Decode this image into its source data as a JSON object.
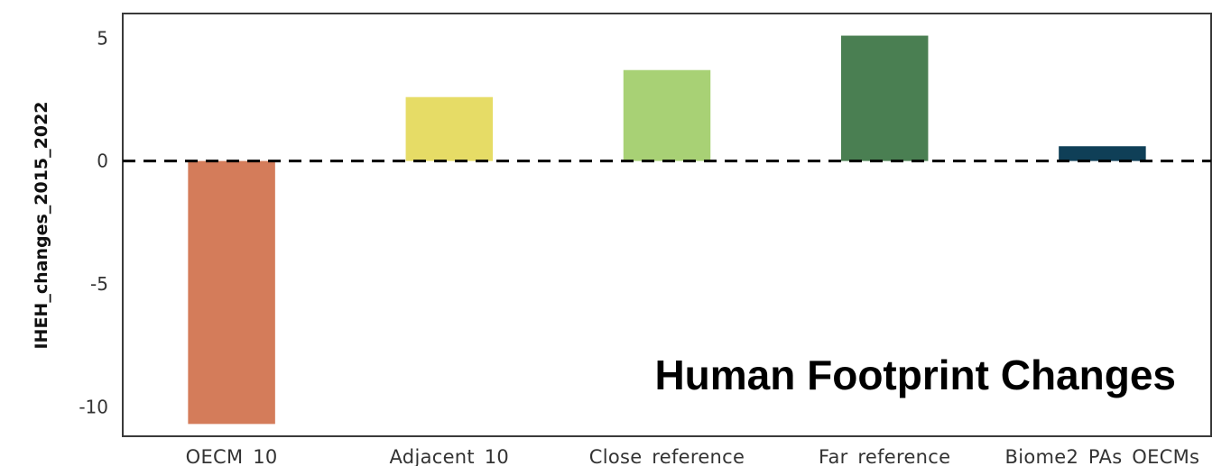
{
  "chart_data": {
    "type": "bar",
    "title": "Human Footprint Changes",
    "xlabel": "",
    "ylabel": "IHEH_changes_2015_2022",
    "categories": [
      "OECM_10",
      "Adjacent_10",
      "Close_reference",
      "Far_reference",
      "Biome2_PAs_OECMs"
    ],
    "values": [
      -10.7,
      2.6,
      3.7,
      5.1,
      0.6
    ],
    "colors": [
      "#D47C5A",
      "#E6DC66",
      "#A8D175",
      "#4A7F52",
      "#0F3F57"
    ],
    "ylim": [
      -11.2,
      6.0
    ],
    "yticks": [
      -10,
      -5,
      0,
      5
    ],
    "reference_line": {
      "y": 0,
      "style": "dashed",
      "color": "#000000"
    },
    "grid": false,
    "legend": "none"
  }
}
